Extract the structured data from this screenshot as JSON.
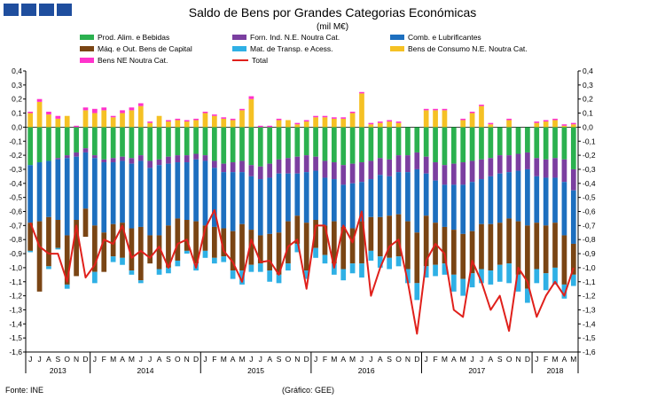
{
  "title": "Saldo de Bens por Grandes Categorias Económicas",
  "subtitle": "(mil M€)",
  "source": "Fonte: INE",
  "credit": "(Gráfico: GEE)",
  "logo_icon": "gee-logo-blocks",
  "colors": {
    "food": "#2bb14f",
    "industrial": "#7b3fa0",
    "fuel": "#1d6fbf",
    "machinery": "#7a4514",
    "transport": "#2fb0e5",
    "consumer": "#f5c124",
    "other": "#ff33cc",
    "total": "#e0201b"
  },
  "legend": [
    {
      "key": "food",
      "label": "Prod. Alim. e Bebidas"
    },
    {
      "key": "industrial",
      "label": "Forn. Ind. N.E. Noutra Cat."
    },
    {
      "key": "fuel",
      "label": "Comb. e Lubrificantes"
    },
    {
      "key": "machinery",
      "label": "Máq. e Out. Bens de Capital"
    },
    {
      "key": "transport",
      "label": "Mat. de Transp. e Acess."
    },
    {
      "key": "consumer",
      "label": "Bens de Consumo N.E. Noutra Cat."
    },
    {
      "key": "other",
      "label": "Bens NE Noutra Cat."
    },
    {
      "key": "total",
      "label": "Total"
    }
  ],
  "chart_data": {
    "type": "bar",
    "stacked": true,
    "title": "Saldo de Bens por Grandes Categorias Económicas",
    "ylabel": "mil M€",
    "ylim": [
      -1.6,
      0.4
    ],
    "yticks": [
      "0,4",
      "0,3",
      "0,2",
      "0,1",
      "0,0",
      "-0,1",
      "-0,2",
      "-0,3",
      "-0,4",
      "-0,5",
      "-0,6",
      "-0,7",
      "-0,8",
      "-0,9",
      "-1,0",
      "-1,1",
      "-1,2",
      "-1,3",
      "-1,4",
      "-1,5",
      "-1,6"
    ],
    "ytick_values": [
      0.4,
      0.3,
      0.2,
      0.1,
      0.0,
      -0.1,
      -0.2,
      -0.3,
      -0.4,
      -0.5,
      -0.6,
      -0.7,
      -0.8,
      -0.9,
      -1.0,
      -1.1,
      -1.2,
      -1.3,
      -1.4,
      -1.5,
      -1.6
    ],
    "month_labels": [
      "J",
      "J",
      "A",
      "S",
      "O",
      "N",
      "D",
      "J",
      "F",
      "M",
      "A",
      "M",
      "J",
      "J",
      "A",
      "S",
      "O",
      "N",
      "D",
      "J",
      "F",
      "M",
      "A",
      "M",
      "J",
      "J",
      "A",
      "S",
      "O",
      "N",
      "D",
      "J",
      "F",
      "M",
      "A",
      "M",
      "J",
      "J",
      "A",
      "S",
      "O",
      "N",
      "D",
      "J",
      "F",
      "M",
      "A",
      "M",
      "J",
      "J",
      "A",
      "S",
      "O",
      "N",
      "D",
      "J",
      "F",
      "M",
      "A",
      "M"
    ],
    "years": [
      {
        "label": "2013",
        "start": 0,
        "count": 7
      },
      {
        "label": "2014",
        "start": 7,
        "count": 12
      },
      {
        "label": "2015",
        "start": 19,
        "count": 12
      },
      {
        "label": "2016",
        "start": 31,
        "count": 12
      },
      {
        "label": "2017",
        "start": 43,
        "count": 12
      },
      {
        "label": "2018",
        "start": 55,
        "count": 5
      }
    ],
    "grid": false,
    "legend_position": "top",
    "series": [
      {
        "name": "Prod. Alim. e Bebidas",
        "key": "food",
        "values": [
          -0.27,
          -0.25,
          -0.24,
          -0.22,
          -0.2,
          -0.18,
          -0.15,
          -0.2,
          -0.23,
          -0.22,
          -0.21,
          -0.22,
          -0.2,
          -0.24,
          -0.23,
          -0.21,
          -0.2,
          -0.2,
          -0.19,
          -0.2,
          -0.24,
          -0.26,
          -0.25,
          -0.24,
          -0.27,
          -0.28,
          -0.26,
          -0.23,
          -0.22,
          -0.21,
          -0.2,
          -0.21,
          -0.24,
          -0.25,
          -0.27,
          -0.26,
          -0.25,
          -0.24,
          -0.22,
          -0.23,
          -0.2,
          -0.2,
          -0.18,
          -0.21,
          -0.25,
          -0.27,
          -0.26,
          -0.25,
          -0.24,
          -0.23,
          -0.22,
          -0.2,
          -0.2,
          -0.19,
          -0.18,
          -0.22,
          -0.23,
          -0.22,
          -0.23,
          -0.3
        ]
      },
      {
        "name": "Forn. Ind. N.E. Noutra Cat.",
        "key": "industrial",
        "values": [
          0.0,
          0.0,
          0.0,
          -0.01,
          -0.02,
          -0.03,
          -0.03,
          -0.02,
          -0.02,
          -0.03,
          -0.03,
          -0.04,
          -0.04,
          -0.05,
          -0.04,
          -0.05,
          -0.05,
          -0.05,
          -0.04,
          -0.04,
          -0.05,
          -0.06,
          -0.07,
          -0.08,
          -0.08,
          -0.09,
          -0.1,
          -0.1,
          -0.11,
          -0.12,
          -0.12,
          -0.1,
          -0.12,
          -0.12,
          -0.14,
          -0.14,
          -0.14,
          -0.13,
          -0.12,
          -0.12,
          -0.12,
          -0.12,
          -0.12,
          -0.12,
          -0.13,
          -0.14,
          -0.15,
          -0.16,
          -0.15,
          -0.14,
          -0.13,
          -0.13,
          -0.12,
          -0.12,
          -0.12,
          -0.13,
          -0.13,
          -0.14,
          -0.16,
          -0.15
        ]
      },
      {
        "name": "Comb. e Lubrificantes",
        "key": "fuel",
        "values": [
          -0.41,
          -0.42,
          -0.4,
          -0.43,
          -0.55,
          -0.45,
          -0.4,
          -0.48,
          -0.5,
          -0.44,
          -0.44,
          -0.46,
          -0.47,
          -0.48,
          -0.5,
          -0.44,
          -0.4,
          -0.41,
          -0.44,
          -0.46,
          -0.42,
          -0.4,
          -0.42,
          -0.37,
          -0.38,
          -0.4,
          -0.4,
          -0.42,
          -0.34,
          -0.3,
          -0.36,
          -0.35,
          -0.34,
          -0.3,
          -0.3,
          -0.32,
          -0.28,
          -0.27,
          -0.3,
          -0.28,
          -0.3,
          -0.35,
          -0.45,
          -0.3,
          -0.3,
          -0.3,
          -0.32,
          -0.35,
          -0.35,
          -0.32,
          -0.34,
          -0.35,
          -0.33,
          -0.36,
          -0.4,
          -0.33,
          -0.34,
          -0.32,
          -0.38,
          -0.38
        ]
      },
      {
        "name": "Máq. e Out. Bens de Capital",
        "key": "machinery",
        "values": [
          -0.2,
          -0.5,
          -0.35,
          -0.2,
          -0.35,
          -0.4,
          -0.2,
          -0.33,
          -0.28,
          -0.23,
          -0.25,
          -0.3,
          -0.38,
          -0.2,
          -0.24,
          -0.3,
          -0.3,
          -0.22,
          -0.3,
          -0.18,
          -0.22,
          -0.2,
          -0.28,
          -0.33,
          -0.25,
          -0.2,
          -0.26,
          -0.3,
          -0.3,
          -0.2,
          -0.34,
          -0.2,
          -0.21,
          -0.3,
          -0.3,
          -0.25,
          -0.3,
          -0.24,
          -0.28,
          -0.3,
          -0.3,
          -0.34,
          -0.36,
          -0.36,
          -0.3,
          -0.26,
          -0.32,
          -0.32,
          -0.3,
          -0.32,
          -0.33,
          -0.3,
          -0.32,
          -0.38,
          -0.45,
          -0.33,
          -0.34,
          -0.32,
          -0.35,
          -0.22
        ]
      },
      {
        "name": "Mat. de Transp. e Acess.",
        "key": "transport",
        "values": [
          -0.01,
          0.0,
          -0.02,
          -0.01,
          -0.03,
          0.0,
          0.0,
          -0.08,
          0.0,
          -0.04,
          -0.05,
          -0.03,
          -0.02,
          0.0,
          -0.04,
          -0.04,
          -0.04,
          -0.02,
          -0.05,
          -0.05,
          -0.04,
          -0.04,
          -0.06,
          -0.1,
          -0.05,
          -0.06,
          -0.08,
          -0.06,
          -0.05,
          -0.06,
          -0.06,
          -0.07,
          -0.06,
          -0.08,
          -0.08,
          -0.07,
          -0.1,
          -0.07,
          -0.08,
          -0.08,
          -0.07,
          -0.1,
          -0.12,
          -0.08,
          -0.08,
          -0.08,
          -0.12,
          -0.12,
          -0.1,
          -0.1,
          -0.1,
          -0.12,
          -0.14,
          -0.12,
          -0.1,
          -0.1,
          -0.12,
          -0.12,
          -0.1,
          -0.08
        ]
      },
      {
        "name": "Bens de Consumo N.E. Noutra Cat.",
        "key": "consumer",
        "values": [
          0.1,
          0.18,
          0.09,
          0.06,
          0.08,
          0.0,
          0.12,
          0.1,
          0.12,
          0.07,
          0.1,
          0.12,
          0.15,
          0.03,
          0.08,
          0.04,
          0.05,
          0.04,
          0.05,
          0.1,
          0.08,
          0.06,
          0.05,
          0.12,
          0.2,
          0.0,
          0.0,
          0.05,
          0.05,
          0.02,
          0.04,
          0.07,
          0.07,
          0.06,
          0.06,
          0.1,
          0.24,
          0.02,
          0.03,
          0.04,
          0.03,
          0.0,
          0.0,
          0.12,
          0.12,
          0.12,
          0.0,
          0.05,
          0.1,
          0.15,
          0.02,
          0.0,
          0.05,
          0.0,
          0.0,
          0.03,
          0.04,
          0.05,
          0.01,
          0.02
        ]
      },
      {
        "name": "Bens NE Noutra Cat.",
        "key": "other",
        "values": [
          0.01,
          0.02,
          0.02,
          0.02,
          0.0,
          0.01,
          0.02,
          0.03,
          0.02,
          0.01,
          0.02,
          0.02,
          0.02,
          0.01,
          0.0,
          0.01,
          0.01,
          0.01,
          0.01,
          0.01,
          0.01,
          0.01,
          0.01,
          0.01,
          0.02,
          0.01,
          0.01,
          0.01,
          0.0,
          0.01,
          0.01,
          0.01,
          0.01,
          0.01,
          0.01,
          0.01,
          0.01,
          0.01,
          0.01,
          0.01,
          0.01,
          0.0,
          0.0,
          0.01,
          0.01,
          0.01,
          0.0,
          0.01,
          0.01,
          0.01,
          0.01,
          0.0,
          0.01,
          0.0,
          0.0,
          0.01,
          0.01,
          0.01,
          0.01,
          0.01
        ]
      },
      {
        "name": "Total",
        "key": "total",
        "type": "line",
        "values": [
          -0.68,
          -0.85,
          -0.9,
          -0.9,
          -1.1,
          -0.7,
          -1.07,
          -0.98,
          -0.8,
          -0.83,
          -0.7,
          -0.93,
          -0.88,
          -0.93,
          -0.85,
          -1.0,
          -0.83,
          -0.8,
          -1.0,
          -0.72,
          -0.59,
          -0.88,
          -0.96,
          -1.1,
          -0.8,
          -0.96,
          -0.95,
          -1.05,
          -0.85,
          -0.8,
          -1.15,
          -0.7,
          -0.7,
          -1.0,
          -0.7,
          -0.82,
          -0.6,
          -1.2,
          -1.0,
          -0.85,
          -0.8,
          -1.1,
          -1.47,
          -0.95,
          -0.83,
          -0.9,
          -1.3,
          -1.35,
          -0.95,
          -1.1,
          -1.3,
          -1.2,
          -1.45,
          -1.0,
          -1.1,
          -1.35,
          -1.2,
          -1.1,
          -1.2,
          -1.0
        ]
      }
    ]
  }
}
